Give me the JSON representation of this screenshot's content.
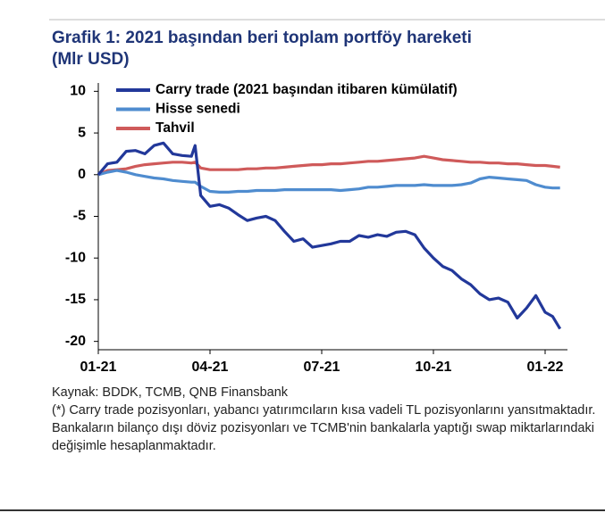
{
  "chart_data": {
    "type": "line",
    "title": "Grafik 1: 2021 başından beri toplam portföy hareketi",
    "subtitle": "(Mlr USD)",
    "x": [
      0,
      0.25,
      0.5,
      0.75,
      1,
      1.25,
      1.5,
      1.75,
      2,
      2.25,
      2.5,
      2.6,
      2.75,
      3,
      3.25,
      3.5,
      3.75,
      4,
      4.25,
      4.5,
      4.75,
      5,
      5.25,
      5.5,
      5.75,
      6,
      6.25,
      6.5,
      6.75,
      7,
      7.25,
      7.5,
      7.75,
      8,
      8.25,
      8.5,
      8.75,
      9,
      9.25,
      9.5,
      9.75,
      10,
      10.25,
      10.5,
      10.75,
      11,
      11.25,
      11.5,
      11.75,
      12,
      12.2,
      12.4
    ],
    "series": [
      {
        "name": "Carry trade (2021 başından itibaren kümülatif)",
        "color": "#22389a",
        "values": [
          0,
          1.3,
          1.5,
          2.8,
          2.9,
          2.5,
          3.5,
          3.8,
          2.5,
          2.3,
          2.2,
          3.5,
          -2.5,
          -3.8,
          -3.6,
          -4.0,
          -4.8,
          -5.5,
          -5.2,
          -5.0,
          -5.5,
          -6.8,
          -8.0,
          -7.7,
          -8.7,
          -8.5,
          -8.3,
          -8.0,
          -8.0,
          -7.3,
          -7.5,
          -7.2,
          -7.4,
          -6.9,
          -6.8,
          -7.2,
          -8.8,
          -10,
          -11,
          -11.5,
          -12.5,
          -13.2,
          -14.3,
          -15,
          -14.8,
          -15.3,
          -17.2,
          -16,
          -14.5,
          -16.5,
          -17,
          -18.5
        ]
      },
      {
        "name": "Hisse senedi",
        "color": "#4f8ccf",
        "values": [
          0,
          0.3,
          0.5,
          0.3,
          0,
          -0.2,
          -0.4,
          -0.5,
          -0.7,
          -0.8,
          -0.9,
          -0.9,
          -1.4,
          -2.0,
          -2.1,
          -2.1,
          -2.0,
          -2.0,
          -1.9,
          -1.9,
          -1.9,
          -1.8,
          -1.8,
          -1.8,
          -1.8,
          -1.8,
          -1.8,
          -1.9,
          -1.8,
          -1.7,
          -1.5,
          -1.5,
          -1.4,
          -1.3,
          -1.3,
          -1.3,
          -1.2,
          -1.3,
          -1.3,
          -1.3,
          -1.2,
          -1.0,
          -0.5,
          -0.3,
          -0.4,
          -0.5,
          -0.6,
          -0.7,
          -1.2,
          -1.5,
          -1.6,
          -1.6
        ]
      },
      {
        "name": "Tahvil",
        "color": "#cf5a5a",
        "values": [
          0,
          0.5,
          0.6,
          0.7,
          1.0,
          1.2,
          1.3,
          1.4,
          1.5,
          1.5,
          1.4,
          1.5,
          0.8,
          0.6,
          0.6,
          0.6,
          0.6,
          0.7,
          0.7,
          0.8,
          0.8,
          0.9,
          1.0,
          1.1,
          1.2,
          1.2,
          1.3,
          1.3,
          1.4,
          1.5,
          1.6,
          1.6,
          1.7,
          1.8,
          1.9,
          2.0,
          2.2,
          2.0,
          1.8,
          1.7,
          1.6,
          1.5,
          1.5,
          1.4,
          1.4,
          1.3,
          1.3,
          1.2,
          1.1,
          1.1,
          1.0,
          0.9
        ]
      }
    ],
    "xlim": [
      0,
      12.6
    ],
    "xticks": [
      {
        "value": 0,
        "label": "01-21"
      },
      {
        "value": 3,
        "label": "04-21"
      },
      {
        "value": 6,
        "label": "07-21"
      },
      {
        "value": 9,
        "label": "10-21"
      },
      {
        "value": 12,
        "label": "01-22"
      }
    ],
    "ylim": [
      -21,
      11
    ],
    "yticks": [
      10,
      5,
      0,
      -5,
      -10,
      -15,
      -20
    ],
    "legend": "upper left",
    "grid": false,
    "source": "Kaynak: BDDK, TCMB, QNB Finansbank",
    "note": "(*) Carry trade pozisyonları, yabancı yatırımcıların kısa vadeli TL pozisyonlarını yansıtmaktadır. Bankaların bilanço dışı döviz pozisyonları ve TCMB'nin bankalarla yaptığı swap miktarlarındaki değişimle hesaplanmaktadır."
  }
}
